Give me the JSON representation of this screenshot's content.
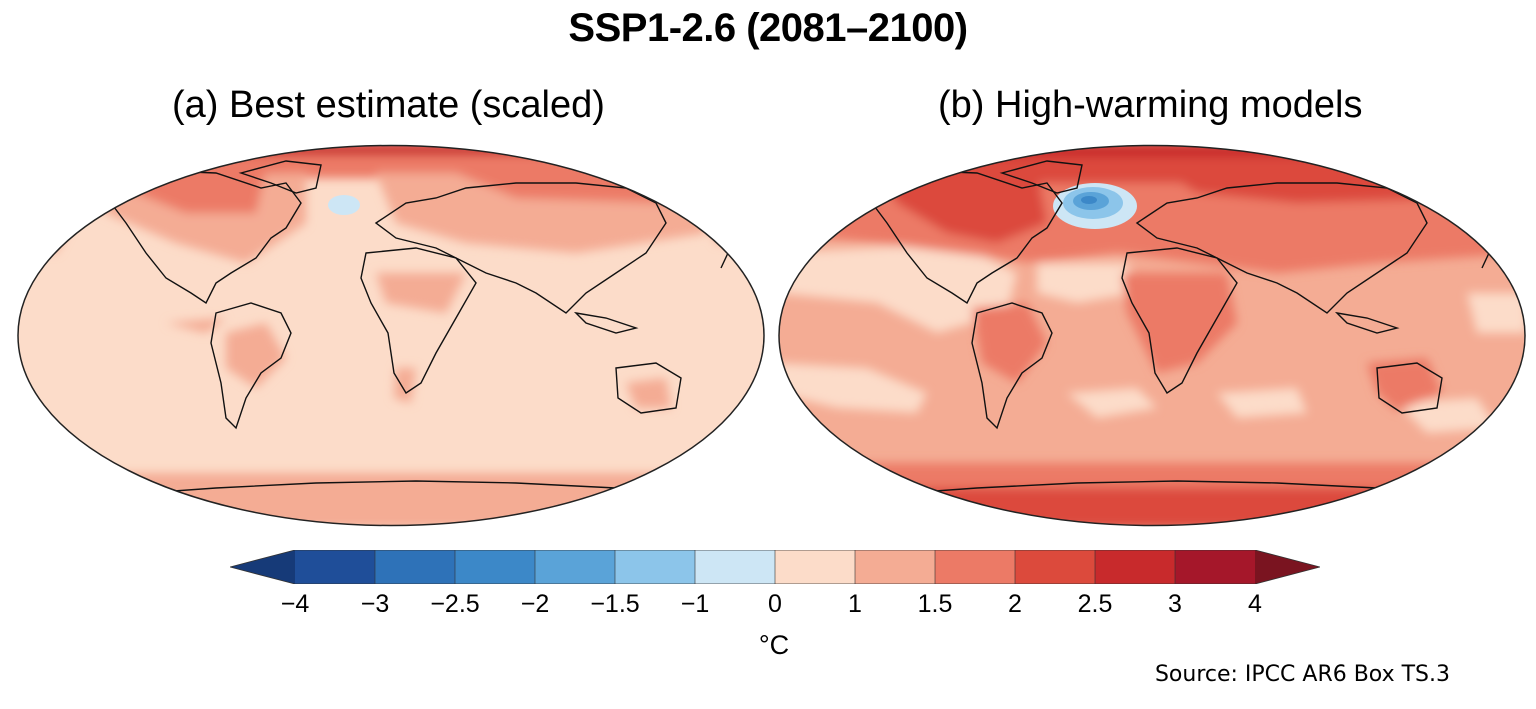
{
  "title": "SSP1-2.6 (2081–2100)",
  "panels": [
    {
      "label": "(a) Best estimate (scaled)"
    },
    {
      "label": "(b) High-warming models"
    }
  ],
  "colorbar": {
    "unit": "°C",
    "ticks": [
      "−4",
      "−3",
      "−2.5",
      "−2",
      "−1.5",
      "−1",
      "0",
      "1",
      "1.5",
      "2",
      "2.5",
      "3",
      "4"
    ],
    "colors": [
      "#1f4e99",
      "#2e72b8",
      "#3c88c8",
      "#5aa3d8",
      "#8cc5ea",
      "#cde6f5",
      "#fcdcc9",
      "#f4ac94",
      "#ec7a66",
      "#dc4a3c",
      "#c82a2c",
      "#a5172a"
    ],
    "below_color": "#163a78",
    "above_color": "#7a1420"
  },
  "source": "Source: IPCC AR6 Box TS.3"
}
